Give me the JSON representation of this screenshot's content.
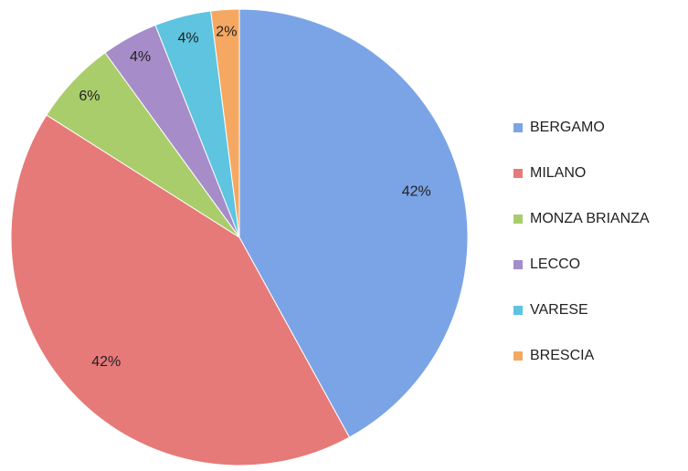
{
  "chart_data": {
    "type": "pie",
    "categories": [
      "BERGAMO",
      "MILANO",
      "MONZA BRIANZA",
      "LECCO",
      "VARESE",
      "BRESCIA"
    ],
    "values": [
      42,
      42,
      6,
      4,
      4,
      2
    ],
    "value_labels": [
      "42%",
      "42%",
      "6%",
      "4%",
      "4%",
      "2%"
    ],
    "colors": [
      "#7ba4e6",
      "#e67a78",
      "#aacd6c",
      "#a68cc8",
      "#5ec4df",
      "#f5a862"
    ],
    "legend": "right"
  }
}
